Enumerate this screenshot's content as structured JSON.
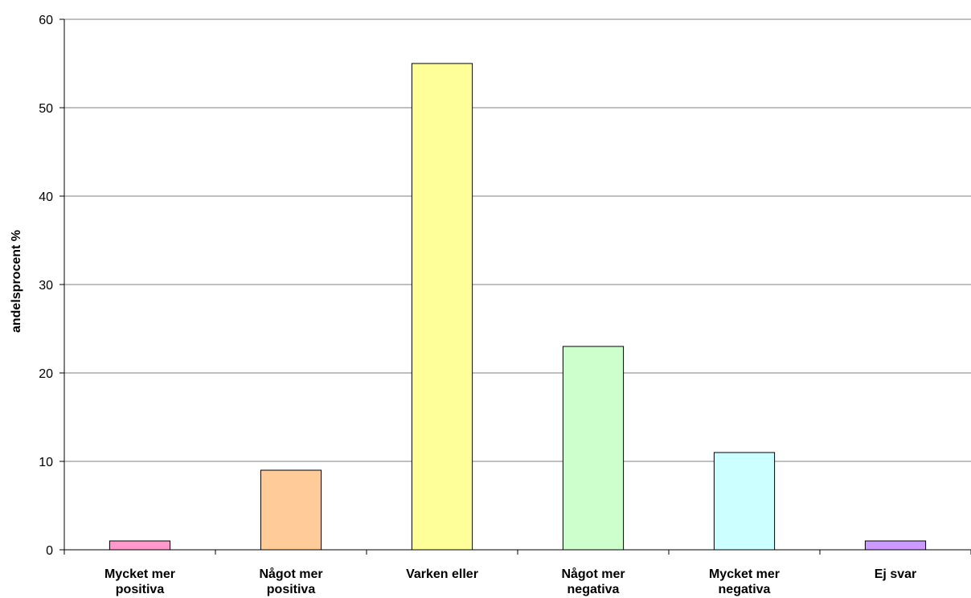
{
  "chart_data": {
    "type": "bar",
    "title": "",
    "xlabel": "",
    "ylabel": "andelsprocent %",
    "ylim": [
      0,
      60
    ],
    "yticks": [
      0,
      10,
      20,
      30,
      40,
      50,
      60
    ],
    "grid": true,
    "legend": "none",
    "categories": [
      [
        "Mycket mer",
        "positiva"
      ],
      [
        "Något mer",
        "positiva"
      ],
      [
        "Varken eller"
      ],
      [
        "Något mer",
        "negativa"
      ],
      [
        "Mycket mer",
        "negativa"
      ],
      [
        "Ej svar"
      ]
    ],
    "values": [
      1,
      9,
      55,
      23,
      11,
      1
    ],
    "colors": [
      "#ff99cc",
      "#ffcc99",
      "#ffff99",
      "#ccffcc",
      "#ccffff",
      "#cc99ff"
    ]
  }
}
